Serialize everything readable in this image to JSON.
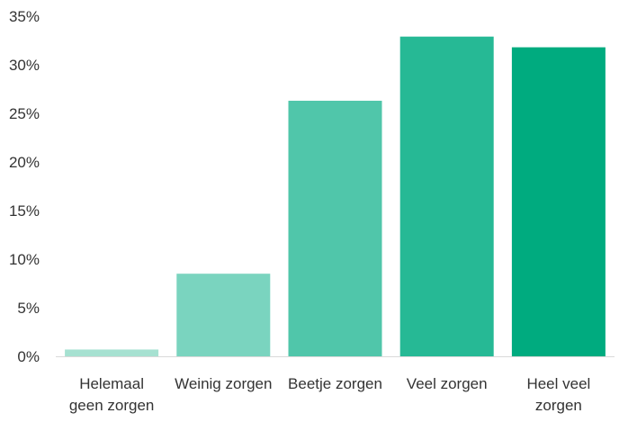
{
  "chart_data": {
    "type": "bar",
    "title": "",
    "xlabel": "",
    "ylabel": "",
    "categories": [
      [
        "Helemaal",
        "geen zorgen"
      ],
      [
        "Weinig zorgen"
      ],
      [
        "Beetje zorgen"
      ],
      [
        "Veel zorgen"
      ],
      [
        "Heel veel",
        "zorgen"
      ]
    ],
    "values": [
      0.7,
      8.5,
      26.3,
      32.9,
      31.8
    ],
    "value_unit": "%",
    "ylim": [
      0,
      35
    ],
    "yticks": [
      "0%",
      "5%",
      "10%",
      "15%",
      "20%",
      "25%",
      "30%",
      "35%"
    ],
    "grid": false,
    "legend": "none",
    "bar_colors": [
      "#a6e1d1",
      "#7ad4bf",
      "#50c6aa",
      "#26b995",
      "#00ab7f"
    ],
    "axis_color": "#d9d9d9"
  }
}
